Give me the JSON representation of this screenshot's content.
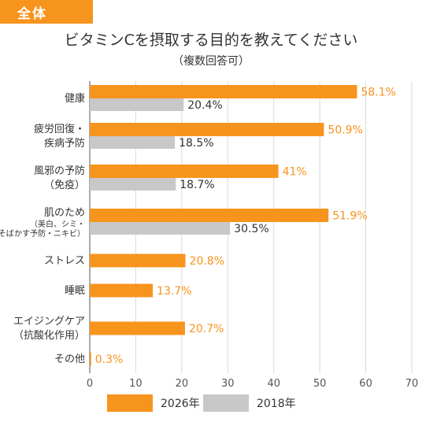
{
  "badge": "全体",
  "title": "ビタミンCを摂取する目的を教えてください",
  "subtitle": "（複数回答可）",
  "colors": {
    "series2026": "#f7941d",
    "series2018": "#c8c8c8",
    "grid": "#d9d9d9",
    "axis": "#555555"
  },
  "chart_data": {
    "type": "bar",
    "orientation": "horizontal",
    "categories": [
      {
        "lines": [
          "健康"
        ],
        "small": []
      },
      {
        "lines": [
          "疲労回復・",
          "疾病予防"
        ],
        "small": []
      },
      {
        "lines": [
          "風邪の予防",
          "（免疫）"
        ],
        "small": []
      },
      {
        "lines": [
          "肌のため"
        ],
        "small": [
          "（美白、シミ・",
          "そばかす予防・ニキビ）"
        ]
      },
      {
        "lines": [
          "ストレス"
        ],
        "small": []
      },
      {
        "lines": [
          "睡眠"
        ],
        "small": []
      },
      {
        "lines": [
          "エイジングケア",
          "（抗酸化作用）"
        ],
        "small": []
      },
      {
        "lines": [
          "その他"
        ],
        "small": []
      }
    ],
    "series": [
      {
        "name": "2026年",
        "values": [
          58.1,
          50.9,
          41,
          51.9,
          20.8,
          13.7,
          20.7,
          0.3
        ],
        "labels": [
          "58.1%",
          "50.9%",
          "41%",
          "51.9%",
          "20.8%",
          "13.7%",
          "20.7%",
          "0.3%"
        ]
      },
      {
        "name": "2018年",
        "values": [
          20.4,
          18.5,
          18.7,
          30.5,
          null,
          null,
          null,
          null
        ],
        "labels": [
          "20.4%",
          "18.5%",
          "18.7%",
          "30.5%",
          null,
          null,
          null,
          null
        ]
      }
    ],
    "xlim": [
      0,
      70
    ],
    "xticks": [
      "0",
      "10",
      "20",
      "30",
      "40",
      "50",
      "60",
      "70"
    ],
    "grid": true,
    "legend": "bottom"
  }
}
